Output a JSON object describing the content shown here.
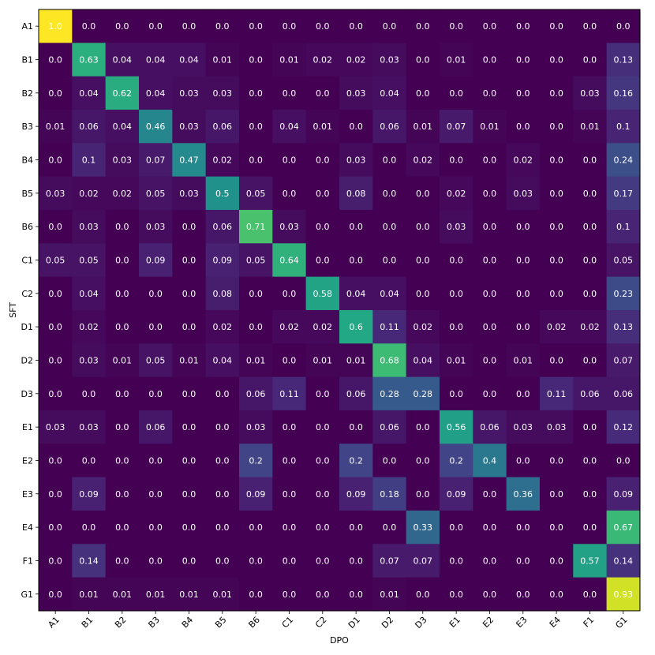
{
  "chart_data": {
    "type": "heatmap",
    "title": "",
    "xlabel": "DPO",
    "ylabel": "SFT",
    "x_categories": [
      "A1",
      "B1",
      "B2",
      "B3",
      "B4",
      "B5",
      "B6",
      "C1",
      "C2",
      "D1",
      "D2",
      "D3",
      "E1",
      "E2",
      "E3",
      "E4",
      "F1",
      "G1"
    ],
    "y_categories": [
      "A1",
      "B1",
      "B2",
      "B3",
      "B4",
      "B5",
      "B6",
      "C1",
      "C2",
      "D1",
      "D2",
      "D3",
      "E1",
      "E2",
      "E3",
      "E4",
      "F1",
      "G1"
    ],
    "value_range": [
      0,
      1
    ],
    "colormap": "viridis",
    "values": [
      [
        "1.0",
        "0.0",
        "0.0",
        "0.0",
        "0.0",
        "0.0",
        "0.0",
        "0.0",
        "0.0",
        "0.0",
        "0.0",
        "0.0",
        "0.0",
        "0.0",
        "0.0",
        "0.0",
        "0.0",
        "0.0"
      ],
      [
        "0.0",
        "0.63",
        "0.04",
        "0.04",
        "0.04",
        "0.01",
        "0.0",
        "0.01",
        "0.02",
        "0.02",
        "0.03",
        "0.0",
        "0.01",
        "0.0",
        "0.0",
        "0.0",
        "0.0",
        "0.13"
      ],
      [
        "0.0",
        "0.04",
        "0.62",
        "0.04",
        "0.03",
        "0.03",
        "0.0",
        "0.0",
        "0.0",
        "0.03",
        "0.04",
        "0.0",
        "0.0",
        "0.0",
        "0.0",
        "0.0",
        "0.03",
        "0.16"
      ],
      [
        "0.01",
        "0.06",
        "0.04",
        "0.46",
        "0.03",
        "0.06",
        "0.0",
        "0.04",
        "0.01",
        "0.0",
        "0.06",
        "0.01",
        "0.07",
        "0.01",
        "0.0",
        "0.0",
        "0.01",
        "0.1"
      ],
      [
        "0.0",
        "0.1",
        "0.03",
        "0.07",
        "0.47",
        "0.02",
        "0.0",
        "0.0",
        "0.0",
        "0.03",
        "0.0",
        "0.02",
        "0.0",
        "0.0",
        "0.02",
        "0.0",
        "0.0",
        "0.24"
      ],
      [
        "0.03",
        "0.02",
        "0.02",
        "0.05",
        "0.03",
        "0.5",
        "0.05",
        "0.0",
        "0.0",
        "0.08",
        "0.0",
        "0.0",
        "0.02",
        "0.0",
        "0.03",
        "0.0",
        "0.0",
        "0.17"
      ],
      [
        "0.0",
        "0.03",
        "0.0",
        "0.03",
        "0.0",
        "0.06",
        "0.71",
        "0.03",
        "0.0",
        "0.0",
        "0.0",
        "0.0",
        "0.03",
        "0.0",
        "0.0",
        "0.0",
        "0.0",
        "0.1"
      ],
      [
        "0.05",
        "0.05",
        "0.0",
        "0.09",
        "0.0",
        "0.09",
        "0.05",
        "0.64",
        "0.0",
        "0.0",
        "0.0",
        "0.0",
        "0.0",
        "0.0",
        "0.0",
        "0.0",
        "0.0",
        "0.05"
      ],
      [
        "0.0",
        "0.04",
        "0.0",
        "0.0",
        "0.0",
        "0.08",
        "0.0",
        "0.0",
        "0.58",
        "0.04",
        "0.04",
        "0.0",
        "0.0",
        "0.0",
        "0.0",
        "0.0",
        "0.0",
        "0.23"
      ],
      [
        "0.0",
        "0.02",
        "0.0",
        "0.0",
        "0.0",
        "0.02",
        "0.0",
        "0.02",
        "0.02",
        "0.6",
        "0.11",
        "0.02",
        "0.0",
        "0.0",
        "0.0",
        "0.02",
        "0.02",
        "0.13"
      ],
      [
        "0.0",
        "0.03",
        "0.01",
        "0.05",
        "0.01",
        "0.04",
        "0.01",
        "0.0",
        "0.01",
        "0.01",
        "0.68",
        "0.04",
        "0.01",
        "0.0",
        "0.01",
        "0.0",
        "0.0",
        "0.07"
      ],
      [
        "0.0",
        "0.0",
        "0.0",
        "0.0",
        "0.0",
        "0.0",
        "0.06",
        "0.11",
        "0.0",
        "0.06",
        "0.28",
        "0.28",
        "0.0",
        "0.0",
        "0.0",
        "0.11",
        "0.06",
        "0.06"
      ],
      [
        "0.03",
        "0.03",
        "0.0",
        "0.06",
        "0.0",
        "0.0",
        "0.03",
        "0.0",
        "0.0",
        "0.0",
        "0.06",
        "0.0",
        "0.56",
        "0.06",
        "0.03",
        "0.03",
        "0.0",
        "0.12"
      ],
      [
        "0.0",
        "0.0",
        "0.0",
        "0.0",
        "0.0",
        "0.0",
        "0.2",
        "0.0",
        "0.0",
        "0.2",
        "0.0",
        "0.0",
        "0.2",
        "0.4",
        "0.0",
        "0.0",
        "0.0",
        "0.0"
      ],
      [
        "0.0",
        "0.09",
        "0.0",
        "0.0",
        "0.0",
        "0.0",
        "0.09",
        "0.0",
        "0.0",
        "0.09",
        "0.18",
        "0.0",
        "0.09",
        "0.0",
        "0.36",
        "0.0",
        "0.0",
        "0.09"
      ],
      [
        "0.0",
        "0.0",
        "0.0",
        "0.0",
        "0.0",
        "0.0",
        "0.0",
        "0.0",
        "0.0",
        "0.0",
        "0.0",
        "0.33",
        "0.0",
        "0.0",
        "0.0",
        "0.0",
        "0.0",
        "0.67"
      ],
      [
        "0.0",
        "0.14",
        "0.0",
        "0.0",
        "0.0",
        "0.0",
        "0.0",
        "0.0",
        "0.0",
        "0.0",
        "0.07",
        "0.07",
        "0.0",
        "0.0",
        "0.0",
        "0.0",
        "0.57",
        "0.14"
      ],
      [
        "0.0",
        "0.01",
        "0.01",
        "0.01",
        "0.01",
        "0.01",
        "0.0",
        "0.0",
        "0.0",
        "0.0",
        "0.01",
        "0.0",
        "0.0",
        "0.0",
        "0.0",
        "0.0",
        "0.0",
        "0.93"
      ]
    ],
    "grid": false,
    "legend": "none",
    "colorbar": false
  }
}
